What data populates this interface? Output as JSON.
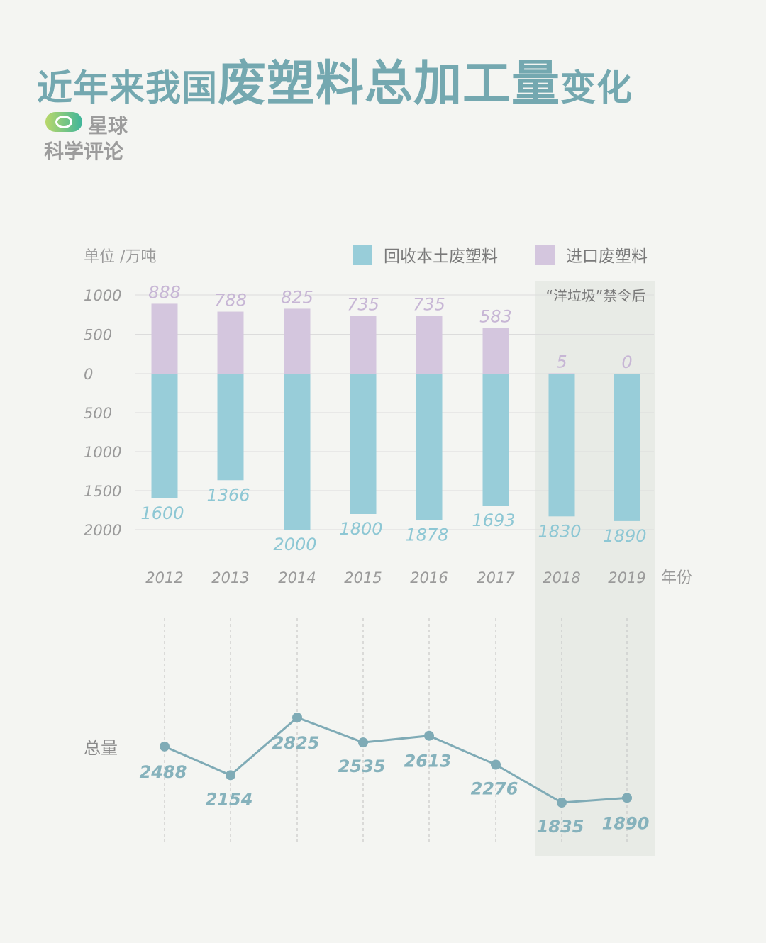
{
  "title": {
    "part1": "近年来我国",
    "part2": "废塑料总加工量",
    "part3": "变化"
  },
  "brand": {
    "line1": "星球",
    "line2": "科学评论"
  },
  "colors": {
    "domestic": "#98cdd9",
    "imported": "#d4c6de",
    "line": "#7fabb6",
    "highlight": "#e8ebe6"
  },
  "chart_data": [
    {
      "type": "bar",
      "unit_label": "单位 /万吨",
      "xlabel": "年份",
      "categories": [
        "2012",
        "2013",
        "2014",
        "2015",
        "2016",
        "2017",
        "2018",
        "2019"
      ],
      "series": [
        {
          "name": "回收本土废塑料",
          "values": [
            1600,
            1366,
            2000,
            1800,
            1878,
            1693,
            1830,
            1890
          ]
        },
        {
          "name": "进口废塑料",
          "values": [
            888,
            788,
            825,
            735,
            735,
            583,
            5,
            0
          ]
        }
      ],
      "y_ticks_up": [
        "1000",
        "500",
        "0"
      ],
      "y_ticks_down": [
        "500",
        "1000",
        "1500",
        "2000"
      ],
      "ylim_imported": [
        0,
        1000
      ],
      "ylim_domestic": [
        0,
        2000
      ],
      "annotation": "“洋垃圾”禁令后",
      "highlight_categories": [
        "2018",
        "2019"
      ],
      "legend_position": "top-right",
      "grid": true
    },
    {
      "type": "line",
      "ylabel": "总量",
      "categories": [
        "2012",
        "2013",
        "2014",
        "2015",
        "2016",
        "2017",
        "2018",
        "2019"
      ],
      "values": [
        2488,
        2154,
        2825,
        2535,
        2613,
        2276,
        1835,
        1890
      ]
    }
  ]
}
